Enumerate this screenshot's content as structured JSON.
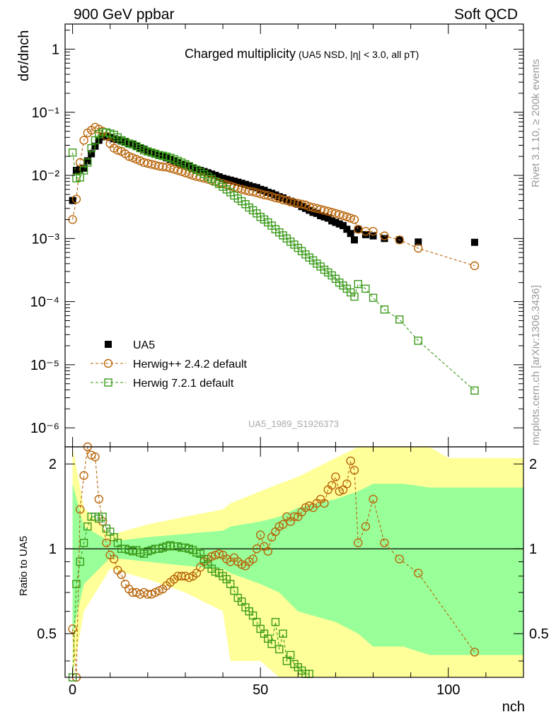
{
  "header": {
    "left": "900 GeV ppbar",
    "right": "Soft QCD"
  },
  "side_labels": {
    "top": "Rivet 3.1.10, ≥ 200k events",
    "bottom": "mcplots.cern.ch [arXiv:1306.3436]"
  },
  "colors": {
    "ua5": "#000000",
    "herwigpp": "#b8650a",
    "herwig7": "#3a9a1a",
    "band_outer": "#ffff99",
    "band_inner": "#99ff99"
  },
  "chart_data": [
    {
      "type": "scatter",
      "title": "Charged multiplicity",
      "subtitle": "(UA5 NSD, |η| < 3.0, all pT)",
      "ylabel": "dσ/dnch",
      "yscale": "log",
      "ylim": [
        5e-07,
        2.5
      ],
      "xlim": [
        -2,
        120
      ],
      "ytick_labels": [
        "1",
        "10⁻¹",
        "10⁻²",
        "10⁻³",
        "10⁻⁴",
        "10⁻⁵",
        "10⁻⁶"
      ],
      "legend_position": "bottom-left",
      "watermark": "UA5_1989_S1926373",
      "series": [
        {
          "name": "UA5",
          "marker": "square-filled",
          "x": [
            0,
            1,
            2,
            3,
            4,
            5,
            6,
            7,
            8,
            9,
            10,
            11,
            12,
            13,
            14,
            15,
            16,
            17,
            18,
            19,
            20,
            21,
            22,
            23,
            24,
            25,
            26,
            27,
            28,
            29,
            30,
            31,
            32,
            33,
            34,
            35,
            36,
            37,
            38,
            39,
            40,
            41,
            42,
            43,
            44,
            45,
            46,
            47,
            48,
            49,
            50,
            51,
            52,
            53,
            54,
            55,
            56,
            57,
            58,
            59,
            60,
            61,
            62,
            63,
            64,
            65,
            66,
            67,
            68,
            69,
            70,
            71,
            72,
            73,
            74,
            75,
            76,
            78,
            80,
            83,
            87,
            92,
            107
          ],
          "values": [
            0.004,
            0.012,
            0.0125,
            0.013,
            0.017,
            0.022,
            0.029,
            0.036,
            0.041,
            0.041,
            0.04,
            0.038,
            0.037,
            0.035,
            0.034,
            0.032,
            0.031,
            0.029,
            0.027,
            0.026,
            0.024,
            0.023,
            0.022,
            0.021,
            0.02,
            0.019,
            0.018,
            0.017,
            0.016,
            0.015,
            0.0145,
            0.014,
            0.013,
            0.0125,
            0.012,
            0.0115,
            0.011,
            0.0105,
            0.01,
            0.0095,
            0.009,
            0.0087,
            0.0084,
            0.0081,
            0.0078,
            0.0075,
            0.0072,
            0.0069,
            0.0066,
            0.0064,
            0.006,
            0.0058,
            0.0054,
            0.0052,
            0.0049,
            0.0046,
            0.0044,
            0.0041,
            0.0039,
            0.0037,
            0.0035,
            0.0032,
            0.003,
            0.0028,
            0.0026,
            0.0025,
            0.0023,
            0.0022,
            0.0021,
            0.0019,
            0.0018,
            0.0017,
            0.0016,
            0.0014,
            0.0012,
            0.00095,
            0.0014,
            0.00115,
            0.0011,
            0.001,
            0.00095,
            0.00088,
            0.00087
          ]
        },
        {
          "name": "Herwig++ 2.4.2 default",
          "marker": "circle-open",
          "line": "dashed",
          "x": [
            0,
            1,
            2,
            3,
            4,
            5,
            6,
            7,
            8,
            9,
            10,
            11,
            12,
            13,
            14,
            15,
            16,
            17,
            18,
            19,
            20,
            21,
            22,
            23,
            24,
            25,
            26,
            27,
            28,
            29,
            30,
            31,
            32,
            33,
            34,
            35,
            36,
            37,
            38,
            39,
            40,
            41,
            42,
            43,
            44,
            45,
            46,
            47,
            48,
            49,
            50,
            51,
            52,
            53,
            54,
            55,
            56,
            57,
            58,
            59,
            60,
            61,
            62,
            63,
            64,
            65,
            66,
            67,
            68,
            69,
            70,
            71,
            72,
            73,
            74,
            75,
            76,
            78,
            80,
            83,
            87,
            92,
            107
          ],
          "values": [
            0.002,
            0.0042,
            0.016,
            0.036,
            0.047,
            0.052,
            0.058,
            0.054,
            0.05,
            0.042,
            0.032,
            0.027,
            0.025,
            0.024,
            0.022,
            0.02,
            0.019,
            0.018,
            0.017,
            0.016,
            0.0155,
            0.015,
            0.0145,
            0.014,
            0.0137,
            0.0135,
            0.013,
            0.0125,
            0.012,
            0.0115,
            0.011,
            0.0105,
            0.01,
            0.0096,
            0.0093,
            0.009,
            0.0087,
            0.0083,
            0.008,
            0.0077,
            0.0074,
            0.0071,
            0.0068,
            0.0065,
            0.0062,
            0.006,
            0.0058,
            0.0056,
            0.0055,
            0.0053,
            0.0051,
            0.0049,
            0.0048,
            0.0046,
            0.0044,
            0.0043,
            0.0041,
            0.004,
            0.0038,
            0.0037,
            0.0036,
            0.0035,
            0.0034,
            0.0032,
            0.0031,
            0.003,
            0.0029,
            0.0028,
            0.0027,
            0.0026,
            0.0025,
            0.0024,
            0.0023,
            0.0022,
            0.0021,
            0.002,
            0.0014,
            0.0013,
            0.0013,
            0.0011,
            0.00095,
            0.0007,
            0.00037
          ]
        },
        {
          "name": "Herwig 7.2.1 default",
          "marker": "square-open",
          "line": "dashed",
          "x": [
            0,
            1,
            2,
            3,
            4,
            5,
            6,
            7,
            8,
            9,
            10,
            11,
            12,
            13,
            14,
            15,
            16,
            17,
            18,
            19,
            20,
            21,
            22,
            23,
            24,
            25,
            26,
            27,
            28,
            29,
            30,
            31,
            32,
            33,
            34,
            35,
            36,
            37,
            38,
            39,
            40,
            41,
            42,
            43,
            44,
            45,
            46,
            47,
            48,
            49,
            50,
            51,
            52,
            53,
            54,
            55,
            56,
            57,
            58,
            59,
            60,
            61,
            62,
            63,
            64,
            65,
            66,
            67,
            68,
            69,
            70,
            71,
            72,
            73,
            74,
            75,
            76,
            78,
            80,
            83,
            87,
            92,
            107
          ],
          "values": [
            0.023,
            0.009,
            0.0093,
            0.012,
            0.016,
            0.027,
            0.036,
            0.045,
            0.048,
            0.048,
            0.046,
            0.044,
            0.04,
            0.036,
            0.034,
            0.032,
            0.031,
            0.029,
            0.027,
            0.025,
            0.024,
            0.023,
            0.022,
            0.021,
            0.0205,
            0.0198,
            0.019,
            0.018,
            0.017,
            0.016,
            0.015,
            0.014,
            0.013,
            0.0122,
            0.0114,
            0.0105,
            0.0096,
            0.0088,
            0.008,
            0.0073,
            0.0066,
            0.006,
            0.0054,
            0.0048,
            0.0043,
            0.0039,
            0.0035,
            0.0031,
            0.0028,
            0.0025,
            0.0022,
            0.002,
            0.0018,
            0.0016,
            0.0014,
            0.00125,
            0.00112,
            0.001,
            0.00089,
            0.0008,
            0.00071,
            0.00063,
            0.00056,
            0.0005,
            0.00045,
            0.0004,
            0.00036,
            0.00032,
            0.00029,
            0.00026,
            0.00023,
            0.0002,
            0.00018,
            0.00016,
            0.00014,
            0.00012,
            0.00019,
            0.00016,
            0.000115,
            7.5e-05,
            5.2e-05,
            2.4e-05,
            3.9e-06
          ]
        }
      ]
    },
    {
      "type": "scatter",
      "title": "",
      "xlabel": "nch",
      "ylabel": "Ratio to UA5",
      "ylim": [
        0.35,
        2.3
      ],
      "xlim": [
        -2,
        120
      ],
      "xtick_labels": [
        "0",
        "50",
        "100"
      ],
      "ytick_labels": [
        "0.5",
        "1",
        "2"
      ],
      "bands": [
        {
          "name": "outer",
          "x": [
            0,
            3,
            10,
            20,
            30,
            40,
            42,
            50,
            55,
            60,
            70,
            76,
            80,
            88,
            95,
            100,
            120
          ],
          "lo": [
            0.35,
            0.6,
            0.85,
            0.78,
            0.7,
            0.6,
            0.4,
            0.4,
            0.35,
            0.35,
            0.35,
            0.35,
            0.35,
            0.35,
            0.35,
            0.35,
            0.35
          ],
          "hi": [
            2.3,
            1.4,
            1.12,
            1.22,
            1.3,
            1.38,
            1.45,
            1.6,
            1.7,
            1.8,
            2.1,
            2.3,
            2.3,
            2.3,
            2.3,
            2.1,
            2.1
          ]
        },
        {
          "name": "inner",
          "x": [
            0,
            3,
            10,
            20,
            30,
            40,
            42,
            50,
            55,
            60,
            70,
            76,
            80,
            88,
            95,
            100,
            120
          ],
          "lo": [
            0.5,
            0.75,
            0.93,
            0.9,
            0.87,
            0.85,
            0.82,
            0.75,
            0.7,
            0.6,
            0.55,
            0.5,
            0.45,
            0.45,
            0.42,
            0.42,
            0.42
          ],
          "hi": [
            1.7,
            1.2,
            1.06,
            1.1,
            1.13,
            1.16,
            1.2,
            1.25,
            1.3,
            1.4,
            1.5,
            1.6,
            1.7,
            1.7,
            1.65,
            1.65,
            1.65
          ]
        }
      ],
      "series": [
        {
          "name": "Herwig++ 2.4.2 default / UA5",
          "marker": "circle-open",
          "x": [
            0,
            1,
            2,
            3,
            4,
            5,
            6,
            7,
            8,
            9,
            10,
            11,
            12,
            13,
            14,
            15,
            16,
            17,
            18,
            19,
            20,
            21,
            22,
            23,
            24,
            25,
            26,
            27,
            28,
            29,
            30,
            31,
            32,
            33,
            34,
            35,
            36,
            37,
            38,
            39,
            40,
            41,
            42,
            43,
            44,
            45,
            46,
            47,
            48,
            49,
            50,
            51,
            52,
            53,
            54,
            55,
            56,
            57,
            58,
            59,
            60,
            61,
            62,
            63,
            64,
            65,
            66,
            67,
            68,
            69,
            70,
            71,
            72,
            73,
            74,
            75,
            76,
            78,
            80,
            83,
            87,
            92,
            107
          ],
          "values": [
            0.52,
            0.35,
            1.38,
            1.82,
            2.3,
            2.15,
            2.12,
            1.5,
            1.25,
            1.05,
            0.95,
            0.92,
            0.84,
            0.81,
            0.75,
            0.72,
            0.7,
            0.7,
            0.69,
            0.7,
            0.69,
            0.69,
            0.7,
            0.71,
            0.72,
            0.74,
            0.76,
            0.78,
            0.8,
            0.8,
            0.8,
            0.79,
            0.8,
            0.82,
            0.86,
            0.9,
            0.92,
            0.94,
            0.95,
            0.96,
            0.95,
            0.92,
            0.9,
            0.93,
            0.9,
            0.88,
            0.87,
            0.9,
            0.92,
            1.0,
            1.12,
            1.02,
            0.98,
            1.1,
            1.15,
            1.2,
            1.22,
            1.3,
            1.25,
            1.3,
            1.3,
            1.35,
            1.4,
            1.42,
            1.4,
            1.45,
            1.5,
            1.45,
            1.62,
            1.68,
            1.8,
            1.6,
            1.62,
            1.7,
            2.05,
            1.9,
            1.05,
            1.2,
            1.5,
            1.05,
            0.92,
            0.82,
            0.43
          ]
        },
        {
          "name": "Herwig 7.2.1 default / UA5",
          "marker": "square-open",
          "x": [
            0,
            1,
            2,
            3,
            4,
            5,
            6,
            7,
            8,
            9,
            10,
            11,
            12,
            13,
            14,
            15,
            16,
            17,
            18,
            19,
            20,
            21,
            22,
            23,
            24,
            25,
            26,
            27,
            28,
            29,
            30,
            31,
            32,
            33,
            34,
            35,
            36,
            37,
            38,
            39,
            40,
            41,
            42,
            43,
            44,
            45,
            46,
            47,
            48,
            49,
            50,
            51,
            52,
            53,
            54,
            55,
            56,
            57,
            58,
            59,
            60,
            61,
            62,
            63
          ],
          "values": [
            0.35,
            0.75,
            0.9,
            1.05,
            1.2,
            1.3,
            1.3,
            1.28,
            1.3,
            1.18,
            1.15,
            1.1,
            1.05,
            1.0,
            1.0,
            0.99,
            0.98,
            0.99,
            0.97,
            0.96,
            0.98,
            0.99,
            1.0,
            1.0,
            1.01,
            1.02,
            1.03,
            1.02,
            1.02,
            1.01,
            1.01,
            1.0,
            0.99,
            0.97,
            0.96,
            0.92,
            0.88,
            0.85,
            0.83,
            0.82,
            0.8,
            0.78,
            0.75,
            0.71,
            0.67,
            0.65,
            0.62,
            0.6,
            0.58,
            0.55,
            0.52,
            0.5,
            0.48,
            0.46,
            0.55,
            0.44,
            0.5,
            0.4,
            0.42,
            0.39,
            0.38,
            0.37,
            0.36,
            0.36
          ]
        }
      ]
    }
  ]
}
